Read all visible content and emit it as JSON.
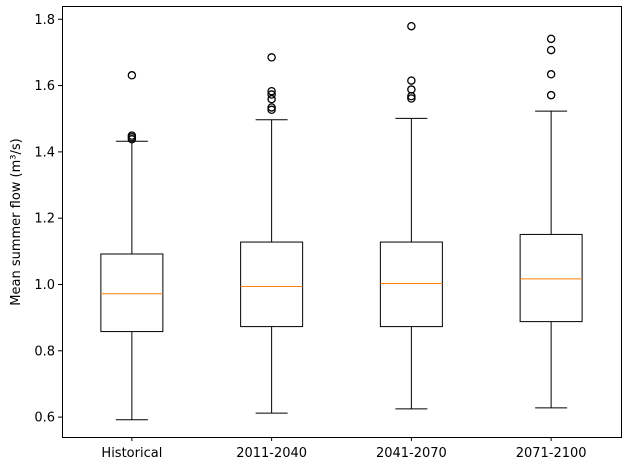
{
  "chart_data": {
    "type": "box",
    "title": "",
    "xlabel": "",
    "ylabel": "Mean summer flow (m³/s)",
    "ylim": [
      0.54,
      1.84
    ],
    "yticks": [
      0.6,
      0.8,
      1.0,
      1.2,
      1.4,
      1.6,
      1.8
    ],
    "ytick_labels": [
      "0.6",
      "0.8",
      "1.0",
      "1.2",
      "1.4",
      "1.6",
      "1.8"
    ],
    "grid": false,
    "colors": {
      "box": "#000000",
      "median": "#ff7f0e",
      "outlier": "#000000"
    },
    "series": [
      {
        "label": "Historical",
        "whisker_low": 0.592,
        "q1": 0.858,
        "median": 0.972,
        "q3": 1.092,
        "whisker_high": 1.432,
        "outliers": [
          1.438,
          1.444,
          1.449,
          1.631
        ]
      },
      {
        "label": "2011-2040",
        "whisker_low": 0.612,
        "q1": 0.873,
        "median": 0.994,
        "q3": 1.128,
        "whisker_high": 1.497,
        "outliers": [
          1.527,
          1.534,
          1.559,
          1.573,
          1.583,
          1.685
        ]
      },
      {
        "label": "2041-2070",
        "whisker_low": 0.625,
        "q1": 0.873,
        "median": 1.003,
        "q3": 1.128,
        "whisker_high": 1.501,
        "outliers": [
          1.561,
          1.568,
          1.588,
          1.615,
          1.779
        ]
      },
      {
        "label": "2071-2100",
        "whisker_low": 0.628,
        "q1": 0.888,
        "median": 1.017,
        "q3": 1.151,
        "whisker_high": 1.523,
        "outliers": [
          1.571,
          1.634,
          1.707,
          1.741
        ]
      }
    ]
  }
}
